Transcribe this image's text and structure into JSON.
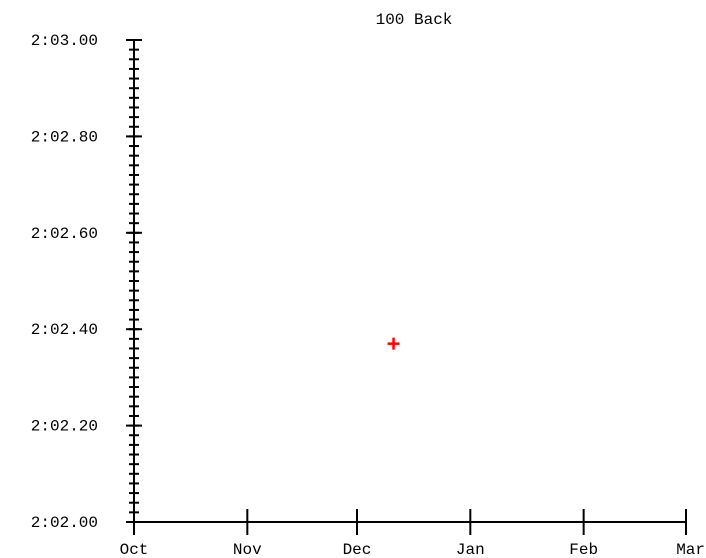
{
  "colors": {
    "background": "#ffffff",
    "axis": "#000000",
    "marker": "#ff0000"
  },
  "chart_data": {
    "type": "scatter",
    "title": "100 Back",
    "xlabel": "",
    "ylabel": "",
    "grid": false,
    "legend": "none",
    "x_axis": {
      "type": "date",
      "ticks": [
        "Oct",
        "Nov",
        "Dec",
        "Jan",
        "Feb",
        "Mar"
      ]
    },
    "y_axis": {
      "unit": "seconds",
      "ylim": [
        122.0,
        123.0
      ],
      "major_ticks": [
        122.0,
        122.2,
        122.4,
        122.6,
        122.8,
        123.0
      ],
      "major_labels": [
        "2:02.00",
        "2:02.20",
        "2:02.40",
        "2:02.60",
        "2:02.80",
        "2:03.00"
      ],
      "minor_step": 0.02
    },
    "series": [
      {
        "marker": "plus",
        "color": "#ff0000",
        "points": [
          {
            "x": "Dec 11",
            "y": 122.37
          }
        ]
      }
    ]
  }
}
